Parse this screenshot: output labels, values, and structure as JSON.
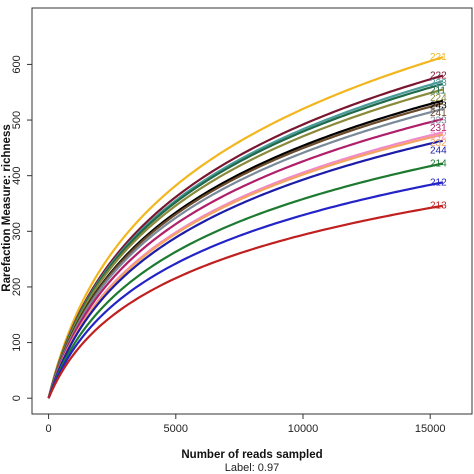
{
  "chart_data": {
    "type": "line",
    "title": "",
    "xlabel": "Number of reads sampled",
    "ylabel": "Rarefaction Measure: richness",
    "note": "Label: 0.97",
    "xlim": [
      0,
      17500
    ],
    "ylim": [
      0,
      700
    ],
    "xticks": [
      0,
      5000,
      10000,
      15000
    ],
    "yticks": [
      0,
      100,
      200,
      300,
      400,
      500,
      600
    ],
    "xticklabels": [
      "0",
      "5000",
      "10000",
      "15000"
    ],
    "yticklabels": [
      "0",
      "100",
      "200",
      "300",
      "400",
      "500",
      "600"
    ],
    "grid": false,
    "legend": "end-of-line labels",
    "series": [
      {
        "name": "221",
        "color": "#f2b61e",
        "end_x": 15500,
        "end_y": 613
      },
      {
        "name": "222",
        "color": "#7a1530",
        "end_x": 15500,
        "end_y": 580
      },
      {
        "name": "223",
        "color": "#4a9a9a",
        "end_x": 15500,
        "end_y": 570
      },
      {
        "name": "211",
        "color": "#1e6a4a",
        "end_x": 15500,
        "end_y": 565
      },
      {
        "name": "224",
        "color": "#8a8a3a",
        "end_x": 15500,
        "end_y": 555
      },
      {
        "name": "243",
        "color": "#000000",
        "end_x": 15500,
        "end_y": 535
      },
      {
        "name": "241",
        "color": "#6a4a2a",
        "end_x": 15500,
        "end_y": 530
      },
      {
        "name": "233",
        "color": "#7a8a9a",
        "end_x": 15500,
        "end_y": 520
      },
      {
        "name": "231",
        "color": "#b0206a",
        "end_x": 15500,
        "end_y": 502
      },
      {
        "name": "242",
        "color": "#f08ac8",
        "end_x": 15500,
        "end_y": 478
      },
      {
        "name": "232",
        "color": "#f4a460",
        "end_x": 15500,
        "end_y": 474
      },
      {
        "name": "244",
        "color": "#1c1ca8",
        "end_x": 15500,
        "end_y": 463
      },
      {
        "name": "214",
        "color": "#1e7a30",
        "end_x": 15500,
        "end_y": 422
      },
      {
        "name": "212",
        "color": "#2323c8",
        "end_x": 15500,
        "end_y": 388
      },
      {
        "name": "213",
        "color": "#c02020",
        "end_x": 15500,
        "end_y": 346
      }
    ]
  }
}
